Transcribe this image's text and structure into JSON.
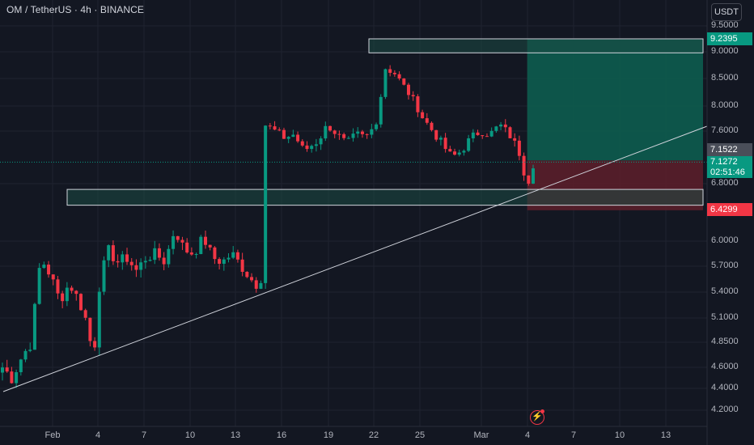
{
  "header": {
    "title": "OM / TetherUS · 4h · BINANCE",
    "currency_button": "USDT"
  },
  "price_axis": {
    "labels": [
      "9.5000",
      "9.0000",
      "8.5000",
      "8.0000",
      "7.6000",
      "6.8000",
      "6.0000",
      "5.7000",
      "5.4000",
      "5.1000",
      "4.8500",
      "4.6000",
      "4.4000",
      "4.2000"
    ]
  },
  "time_axis": {
    "labels": [
      "Feb",
      "4",
      "7",
      "10",
      "13",
      "16",
      "19",
      "22",
      "25",
      "Mar",
      "4",
      "7",
      "10",
      "13"
    ]
  },
  "tags": {
    "target_price": "9.2395",
    "entry_price": "7.1522",
    "last_price": "7.1272",
    "countdown": "02:51:46",
    "stop_price": "6.4299"
  },
  "colors": {
    "background": "#131722",
    "up_candle": "#089981",
    "down_candle": "#f23645",
    "target_zone": "#0d5c4f",
    "stop_zone": "#5a1e2a"
  },
  "icons": {
    "alert": "flash-icon"
  },
  "chart_data": {
    "type": "candlestick",
    "symbol": "OM / TetherUS",
    "interval": "4h",
    "exchange": "BINANCE",
    "ylim": [
      4.15,
      9.6
    ],
    "price_levels": [
      9.5,
      9.0,
      8.5,
      8.0,
      7.6,
      6.8,
      6.0,
      5.7,
      5.4,
      5.1,
      4.85,
      4.6,
      4.4,
      4.2
    ],
    "x_ticks": [
      "Feb",
      "4",
      "7",
      "10",
      "13",
      "16",
      "19",
      "22",
      "25",
      "Mar",
      "4",
      "7",
      "10",
      "13"
    ],
    "path": [
      [
        0,
        4.6
      ],
      [
        2,
        4.5
      ],
      [
        4,
        4.7
      ],
      [
        6,
        4.85
      ],
      [
        8,
        5.8
      ],
      [
        10,
        5.6
      ],
      [
        12,
        5.3
      ],
      [
        14,
        5.5
      ],
      [
        16,
        5.3
      ],
      [
        18,
        5.0
      ],
      [
        19,
        4.6
      ],
      [
        20,
        5.4
      ],
      [
        22,
        5.9
      ],
      [
        24,
        5.75
      ],
      [
        26,
        5.8
      ],
      [
        28,
        5.65
      ],
      [
        30,
        5.8
      ],
      [
        32,
        5.85
      ],
      [
        34,
        5.75
      ],
      [
        36,
        6.15
      ],
      [
        38,
        5.9
      ],
      [
        40,
        5.85
      ],
      [
        42,
        6.05
      ],
      [
        44,
        5.8
      ],
      [
        46,
        5.75
      ],
      [
        48,
        5.85
      ],
      [
        50,
        5.7
      ],
      [
        52,
        5.55
      ],
      [
        53,
        5.5
      ],
      [
        54,
        5.45
      ],
      [
        55,
        7.7
      ],
      [
        57,
        7.6
      ],
      [
        59,
        7.5
      ],
      [
        61,
        7.55
      ],
      [
        63,
        7.3
      ],
      [
        66,
        7.45
      ],
      [
        68,
        7.7
      ],
      [
        70,
        7.55
      ],
      [
        72,
        7.4
      ],
      [
        74,
        7.55
      ],
      [
        76,
        7.5
      ],
      [
        78,
        7.7
      ],
      [
        79,
        8.1
      ],
      [
        80,
        8.7
      ],
      [
        82,
        8.6
      ],
      [
        84,
        8.35
      ],
      [
        86,
        8.1
      ],
      [
        88,
        7.8
      ],
      [
        90,
        7.6
      ],
      [
        92,
        7.4
      ],
      [
        94,
        7.2
      ],
      [
        96,
        7.3
      ],
      [
        98,
        7.5
      ],
      [
        100,
        7.6
      ],
      [
        102,
        7.55
      ],
      [
        104,
        7.7
      ],
      [
        106,
        7.55
      ],
      [
        108,
        7.3
      ],
      [
        109,
        7.0
      ],
      [
        110,
        6.85
      ],
      [
        111,
        7.1
      ]
    ],
    "trendline": {
      "from": [
        0,
        4.4
      ],
      "to": [
        146,
        7.65
      ]
    },
    "zones": [
      {
        "name": "resistance",
        "from_x": 76,
        "to_x": 146,
        "low": 8.98,
        "high": 9.25
      },
      {
        "name": "support",
        "from_x": 14,
        "to_x": 146,
        "low": 6.5,
        "high": 6.72
      }
    ],
    "position": {
      "type": "long",
      "entry": 7.1522,
      "target": 9.2395,
      "stop": 6.4299,
      "from_x": 111,
      "to_x": 146
    },
    "last_price": 7.1272
  }
}
